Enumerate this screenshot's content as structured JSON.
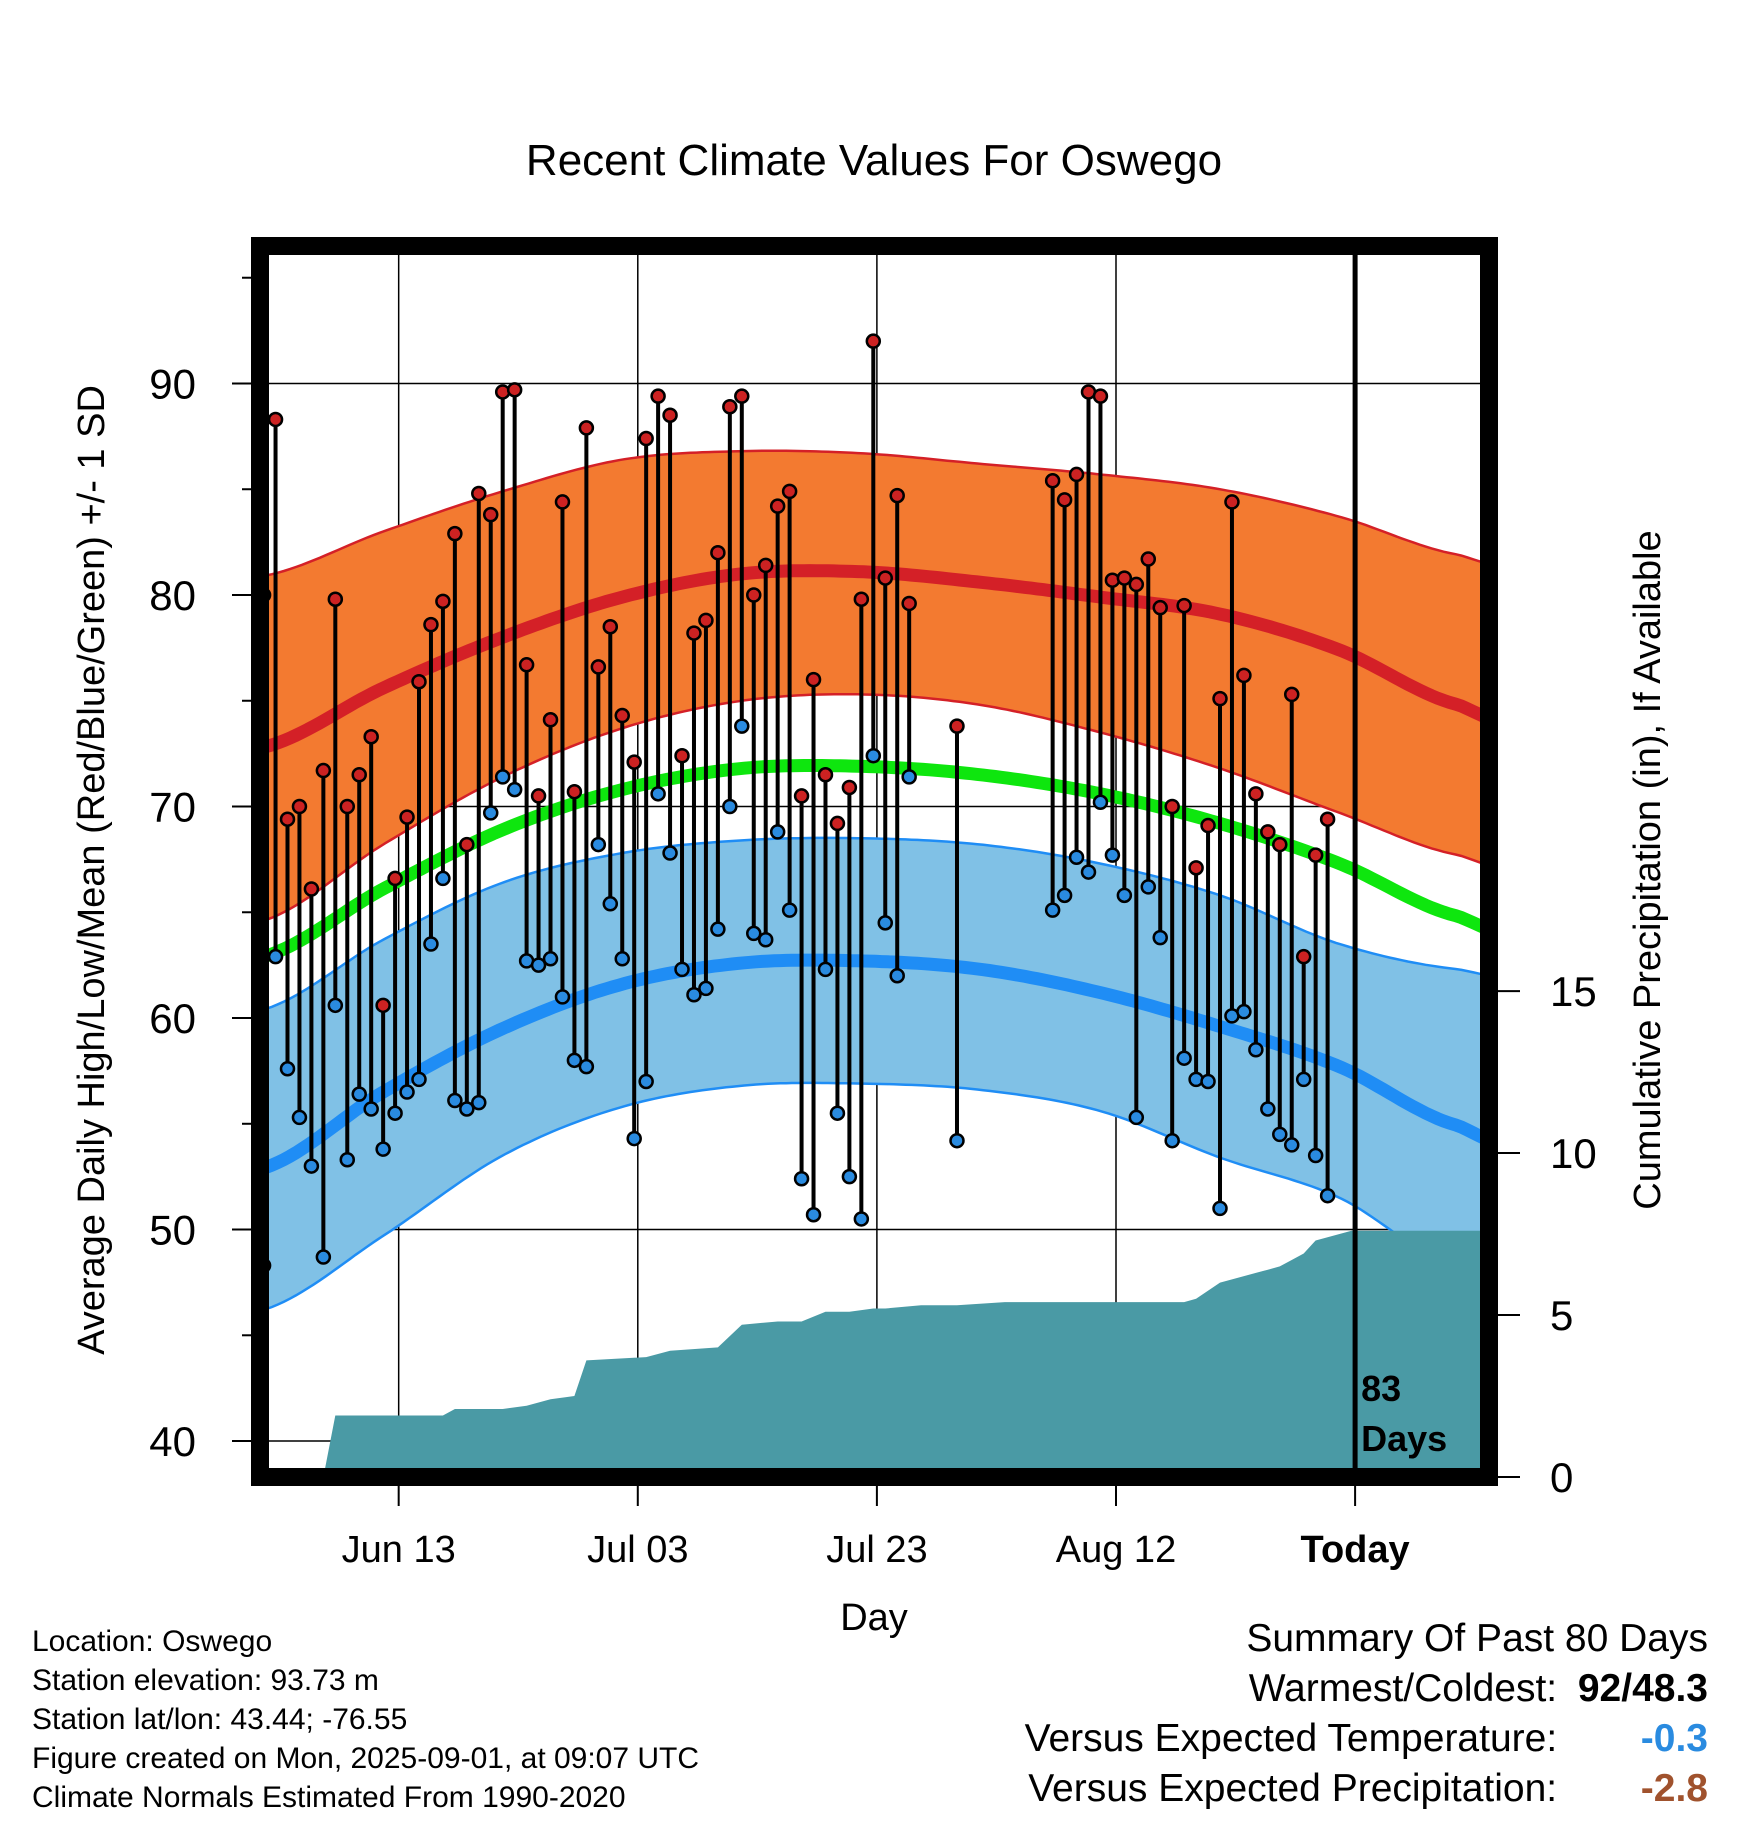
{
  "chart_data": {
    "type": "line",
    "title": "Recent Climate Values For Oswego",
    "xlabel": "Day",
    "ylabel": "Average Daily High/Low/Mean (Red/Blue/Green) +/- 1 SD",
    "y2label": "Cumulative Precipitation (in), If Available",
    "ylim": [
      38.3,
      96.5
    ],
    "y2lim": [
      0,
      38
    ],
    "xlim": [
      -0.3,
      102.5
    ],
    "grid": true,
    "x_tick_labels": [
      {
        "day": 11.3,
        "label": "Jun 13"
      },
      {
        "day": 31.3,
        "label": "Jul 03"
      },
      {
        "day": 51.3,
        "label": "Jul 23"
      },
      {
        "day": 71.3,
        "label": "Aug 12"
      },
      {
        "day": 91.3,
        "label": "Today"
      }
    ],
    "y_ticks": [
      40,
      50,
      60,
      70,
      80,
      90
    ],
    "y2_ticks": [
      0,
      5,
      10,
      15
    ],
    "today_marker": {
      "day": 91.3,
      "label_line1": "83",
      "label_line2": "Days"
    },
    "colors": {
      "high_band": "#f37a30",
      "high_line": "#d42027",
      "low_band": "#80c1e6",
      "low_line": "#1f8df5",
      "mean_line": "#0ee60e",
      "precip_fill": "#4a9aa5",
      "high_dot": "#cc2222",
      "low_dot": "#2a8be0"
    },
    "normals": {
      "days": [
        0,
        10,
        20,
        30,
        40,
        50,
        60,
        70,
        80,
        90,
        100
      ],
      "high": [
        72.8,
        75.6,
        78.0,
        79.9,
        81.0,
        81.1,
        80.6,
        79.9,
        79.1,
        77.4,
        74.8
      ],
      "high_upper": [
        80.9,
        83.0,
        84.9,
        86.4,
        86.8,
        86.7,
        86.2,
        85.7,
        85.0,
        83.7,
        81.9
      ],
      "high_lower": [
        64.6,
        68.2,
        71.4,
        73.7,
        75.0,
        75.3,
        74.8,
        73.5,
        71.8,
        69.7,
        67.7
      ],
      "low": [
        52.9,
        56.5,
        59.5,
        61.6,
        62.6,
        62.7,
        62.3,
        61.2,
        59.6,
        57.7,
        54.9
      ],
      "low_upper": [
        60.4,
        63.7,
        66.4,
        67.8,
        68.4,
        68.5,
        68.2,
        67.3,
        65.8,
        63.5,
        62.3
      ],
      "low_lower": [
        46.2,
        49.7,
        53.5,
        55.8,
        56.8,
        56.9,
        56.6,
        55.6,
        53.4,
        51.5,
        48.1
      ],
      "mean": [
        62.9,
        66.1,
        68.9,
        70.8,
        71.8,
        71.9,
        71.5,
        70.6,
        69.2,
        67.3,
        64.8
      ]
    },
    "observations": [
      {
        "day": 0,
        "high": 80.0,
        "low": 48.3
      },
      {
        "day": 1,
        "high": 88.3,
        "low": 62.9
      },
      {
        "day": 2,
        "high": 69.4,
        "low": 57.6
      },
      {
        "day": 3,
        "high": 70.0,
        "low": 55.3
      },
      {
        "day": 4,
        "high": 66.1,
        "low": 53.0
      },
      {
        "day": 5,
        "high": 71.7,
        "low": 48.7
      },
      {
        "day": 6,
        "high": 79.8,
        "low": 60.6
      },
      {
        "day": 7,
        "high": 70.0,
        "low": 53.3
      },
      {
        "day": 8,
        "high": 71.5,
        "low": 56.4
      },
      {
        "day": 9,
        "high": 73.3,
        "low": 55.7
      },
      {
        "day": 10,
        "high": 60.6,
        "low": 53.8
      },
      {
        "day": 11,
        "high": 66.6,
        "low": 55.5
      },
      {
        "day": 12,
        "high": 69.5,
        "low": 56.5
      },
      {
        "day": 13,
        "high": 75.9,
        "low": 57.1
      },
      {
        "day": 14,
        "high": 78.6,
        "low": 63.5
      },
      {
        "day": 15,
        "high": 79.7,
        "low": 66.6
      },
      {
        "day": 16,
        "high": 82.9,
        "low": 56.1
      },
      {
        "day": 17,
        "high": 68.2,
        "low": 55.7
      },
      {
        "day": 18,
        "high": 84.8,
        "low": 56.0
      },
      {
        "day": 19,
        "high": 83.8,
        "low": 69.7
      },
      {
        "day": 20,
        "high": 89.6,
        "low": 71.4
      },
      {
        "day": 21,
        "high": 89.7,
        "low": 70.8
      },
      {
        "day": 22,
        "high": 76.7,
        "low": 62.7
      },
      {
        "day": 23,
        "high": 70.5,
        "low": 62.5
      },
      {
        "day": 24,
        "high": 74.1,
        "low": 62.8
      },
      {
        "day": 25,
        "high": 84.4,
        "low": 61.0
      },
      {
        "day": 26,
        "high": 70.7,
        "low": 58.0
      },
      {
        "day": 27,
        "high": 87.9,
        "low": 57.7
      },
      {
        "day": 28,
        "high": 76.6,
        "low": 68.2
      },
      {
        "day": 29,
        "high": 78.5,
        "low": 65.4
      },
      {
        "day": 30,
        "high": 74.3,
        "low": 62.8
      },
      {
        "day": 31,
        "high": 72.1,
        "low": 54.3
      },
      {
        "day": 32,
        "high": 87.4,
        "low": 57.0
      },
      {
        "day": 33,
        "high": 89.4,
        "low": 70.6
      },
      {
        "day": 34,
        "high": 88.5,
        "low": 67.8
      },
      {
        "day": 35,
        "high": 72.4,
        "low": 62.3
      },
      {
        "day": 36,
        "high": 78.2,
        "low": 61.1
      },
      {
        "day": 37,
        "high": 78.8,
        "low": 61.4
      },
      {
        "day": 38,
        "high": 82.0,
        "low": 64.2
      },
      {
        "day": 39,
        "high": 88.9,
        "low": 70.0
      },
      {
        "day": 40,
        "high": 89.4,
        "low": 73.8
      },
      {
        "day": 41,
        "high": 80.0,
        "low": 64.0
      },
      {
        "day": 42,
        "high": 81.4,
        "low": 63.7
      },
      {
        "day": 43,
        "high": 84.2,
        "low": 68.8
      },
      {
        "day": 44,
        "high": 84.9,
        "low": 65.1
      },
      {
        "day": 45,
        "high": 70.5,
        "low": 52.4
      },
      {
        "day": 46,
        "high": 76.0,
        "low": 50.7
      },
      {
        "day": 47,
        "high": 71.5,
        "low": 62.3
      },
      {
        "day": 48,
        "high": 69.2,
        "low": 55.5
      },
      {
        "day": 49,
        "high": 70.9,
        "low": 52.5
      },
      {
        "day": 50,
        "high": 79.8,
        "low": 50.5
      },
      {
        "day": 51,
        "high": 92.0,
        "low": 72.4
      },
      {
        "day": 52,
        "high": 80.8,
        "low": 64.5
      },
      {
        "day": 53,
        "high": 84.7,
        "low": 62.0
      },
      {
        "day": 54,
        "high": 79.6,
        "low": 71.4
      },
      {
        "day": 58,
        "high": 73.8,
        "low": 54.2
      },
      {
        "day": 66,
        "high": 85.4,
        "low": 65.1
      },
      {
        "day": 67,
        "high": 84.5,
        "low": 65.8
      },
      {
        "day": 68,
        "high": 85.7,
        "low": 67.6
      },
      {
        "day": 69,
        "high": 89.6,
        "low": 66.9
      },
      {
        "day": 70,
        "high": 89.4,
        "low": 70.2
      },
      {
        "day": 71,
        "high": 80.7,
        "low": 67.7
      },
      {
        "day": 72,
        "high": 80.8,
        "low": 65.8
      },
      {
        "day": 73,
        "high": 80.5,
        "low": 55.3
      },
      {
        "day": 74,
        "high": 81.7,
        "low": 66.2
      },
      {
        "day": 75,
        "high": 79.4,
        "low": 63.8
      },
      {
        "day": 76,
        "high": 70.0,
        "low": 54.2
      },
      {
        "day": 77,
        "high": 79.5,
        "low": 58.1
      },
      {
        "day": 78,
        "high": 67.1,
        "low": 57.1
      },
      {
        "day": 79,
        "high": 69.1,
        "low": 57.0
      },
      {
        "day": 80,
        "high": 75.1,
        "low": 51.0
      },
      {
        "day": 81,
        "high": 84.4,
        "low": 60.1
      },
      {
        "day": 82,
        "high": 76.2,
        "low": 60.3
      },
      {
        "day": 83,
        "high": 70.6,
        "low": 58.5
      },
      {
        "day": 84,
        "high": 68.8,
        "low": 55.7
      },
      {
        "day": 85,
        "high": 68.2,
        "low": 54.5
      },
      {
        "day": 86,
        "high": 75.3,
        "low": 54.0
      },
      {
        "day": 87,
        "high": 62.9,
        "low": 57.1
      },
      {
        "day": 88,
        "high": 67.7,
        "low": 53.5
      },
      {
        "day": 89,
        "high": 69.4,
        "low": 51.6
      }
    ],
    "precipitation_cumulative": {
      "days": [
        0,
        5,
        6,
        15,
        16,
        20,
        22,
        24,
        26,
        27,
        32,
        34,
        38,
        40,
        43,
        45,
        47,
        49,
        51,
        52,
        55,
        58,
        62,
        66,
        70,
        75,
        77,
        78,
        80,
        81,
        83,
        84,
        85,
        86,
        87,
        88,
        91,
        102.5
      ],
      "values": [
        0,
        0,
        1.9,
        1.9,
        2.1,
        2.1,
        2.2,
        2.4,
        2.5,
        3.6,
        3.7,
        3.9,
        4.0,
        4.7,
        4.8,
        4.8,
        5.1,
        5.1,
        5.2,
        5.2,
        5.3,
        5.3,
        5.4,
        5.4,
        5.4,
        5.4,
        5.4,
        5.5,
        6.0,
        6.1,
        6.3,
        6.4,
        6.5,
        6.7,
        6.9,
        7.3,
        7.6,
        7.6
      ]
    }
  },
  "info": {
    "location": "Location: Oswego",
    "elevation": "Station elevation: 93.73 m",
    "latlon": "Station lat/lon: 43.44; -76.55",
    "created": "Figure created on Mon, 2025-09-01, at 09:07 UTC",
    "normals": "Climate Normals Estimated From 1990-2020"
  },
  "summary": {
    "title": "Summary Of Past 80 Days",
    "warm_cold_label": "Warmest/Coldest:",
    "warm_cold_value_high": "92",
    "warm_cold_value_low": "48.3",
    "warm_cold_sep": "/",
    "temp_label": "Versus Expected Temperature:",
    "temp_value": "-0.3",
    "temp_color": "#2a8be0",
    "precip_label": "Versus Expected Precipitation:",
    "precip_value": "-2.8",
    "precip_color": "#a0522d"
  }
}
